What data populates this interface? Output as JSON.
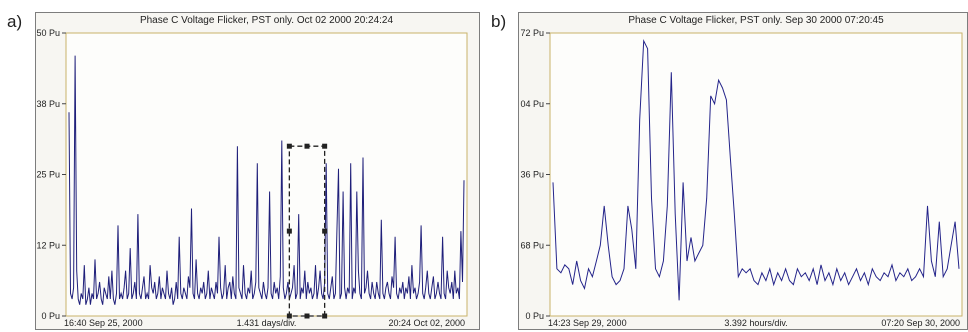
{
  "panels": [
    {
      "letter": "a)"
    },
    {
      "letter": "b)"
    }
  ],
  "chart_data": [
    {
      "type": "line",
      "title": "Phase C Voltage Flicker, PST only. Oct 02 2000 20:24:24",
      "ylim": [
        0,
        50
      ],
      "yticks": [
        {
          "label": "0 Pu",
          "value": 0
        },
        {
          "label": "12 Pu",
          "value": 12.5
        },
        {
          "label": "25 Pu",
          "value": 25
        },
        {
          "label": "38 Pu",
          "value": 37.5
        },
        {
          "label": "50 Pu",
          "value": 50
        }
      ],
      "x_start_label": "16:40 Sep 25, 2000",
      "x_mid_label": "1.431 days/div.",
      "x_end_label": "20:24 Oct 02, 2000",
      "color": "#1f1f7a",
      "selection_color": "#222222",
      "selection": {
        "x_from": 0.557,
        "x_to": 0.645,
        "y_from": 0,
        "y_to": 30
      },
      "series": [
        {
          "values": [
            36,
            4,
            3,
            5,
            46,
            8,
            3,
            2,
            4,
            3,
            9,
            2,
            3,
            5,
            2,
            4,
            3,
            10,
            3,
            4,
            6,
            3,
            2,
            5,
            4,
            3,
            7,
            3,
            8,
            3,
            2,
            4,
            16,
            3,
            4,
            3,
            5,
            8,
            3,
            4,
            12,
            3,
            4,
            6,
            3,
            18,
            4,
            3,
            5,
            7,
            3,
            4,
            3,
            9,
            5,
            4,
            6,
            3,
            4,
            7,
            3,
            5,
            4,
            3,
            8,
            4,
            3,
            5,
            2,
            3,
            6,
            3,
            14,
            4,
            3,
            5,
            4,
            3,
            7,
            5,
            19,
            4,
            3,
            10,
            4,
            3,
            5,
            4,
            6,
            3,
            4,
            8,
            3,
            5,
            4,
            3,
            6,
            4,
            14,
            5,
            3,
            4,
            9,
            3,
            5,
            6,
            3,
            7,
            4,
            3,
            30,
            5,
            4,
            3,
            9,
            4,
            3,
            5,
            4,
            8,
            3,
            4,
            6,
            27,
            5,
            4,
            3,
            6,
            4,
            3,
            5,
            22,
            4,
            3,
            6,
            4,
            5,
            3,
            7,
            31,
            5,
            3,
            4,
            6,
            3,
            4,
            5,
            9,
            3,
            4,
            18,
            3,
            5,
            4,
            8,
            3,
            6,
            4,
            5,
            3,
            4,
            9,
            3,
            5,
            8,
            4,
            3,
            6,
            27,
            4,
            3,
            5,
            7,
            3,
            4,
            15,
            26,
            3,
            4,
            22,
            5,
            3,
            5,
            4,
            27,
            3,
            5,
            4,
            22,
            8,
            4,
            3,
            28,
            4,
            5,
            8,
            4,
            3,
            6,
            4,
            3,
            6,
            4,
            3,
            17,
            4,
            3,
            5,
            6,
            4,
            3,
            7,
            5,
            14,
            4,
            3,
            5,
            4,
            6,
            3,
            5,
            4,
            7,
            3,
            9,
            4,
            5,
            3,
            4,
            6,
            16,
            4,
            3,
            5,
            8,
            4,
            3,
            5,
            7,
            3,
            4,
            6,
            4,
            3,
            14,
            4,
            3,
            8,
            5,
            4,
            6,
            3,
            8,
            4,
            5,
            3,
            15,
            6,
            24
          ]
        }
      ]
    },
    {
      "type": "line",
      "title": "Phase C Voltage Flicker, PST only. Sep 30 2000 07:20:45",
      "ylim": [
        0,
        72
      ],
      "yticks": [
        {
          "label": "0 Pu",
          "value": 0
        },
        {
          "label": "68 Pu",
          "value": 18
        },
        {
          "label": "36 Pu",
          "value": 36
        },
        {
          "label": "04 Pu",
          "value": 54
        },
        {
          "label": "72 Pu",
          "value": 72
        }
      ],
      "x_start_label": "14:23 Sep 29, 2000",
      "x_mid_label": "3.392 hours/div.",
      "x_end_label": "07:20 Sep 30, 2000",
      "color": "#24248a",
      "series": [
        {
          "values": [
            34,
            12,
            11,
            13,
            12,
            8,
            14,
            9,
            7,
            12,
            10,
            14,
            18,
            28,
            18,
            10,
            8,
            9,
            12,
            28,
            22,
            12,
            50,
            70,
            68,
            30,
            12,
            10,
            14,
            28,
            62,
            26,
            4,
            34,
            14,
            20,
            14,
            16,
            18,
            30,
            56,
            54,
            60,
            58,
            55,
            40,
            26,
            10,
            12,
            11,
            12,
            9,
            8,
            11,
            9,
            12,
            8,
            11,
            9,
            12,
            9,
            8,
            12,
            10,
            11,
            9,
            12,
            8,
            13,
            9,
            11,
            8,
            12,
            9,
            11,
            8,
            10,
            12,
            9,
            11,
            8,
            12,
            10,
            9,
            11,
            10,
            13,
            9,
            11,
            10,
            12,
            9,
            10,
            12,
            10,
            28,
            14,
            10,
            24,
            10,
            12,
            18,
            24,
            12
          ]
        }
      ]
    }
  ]
}
